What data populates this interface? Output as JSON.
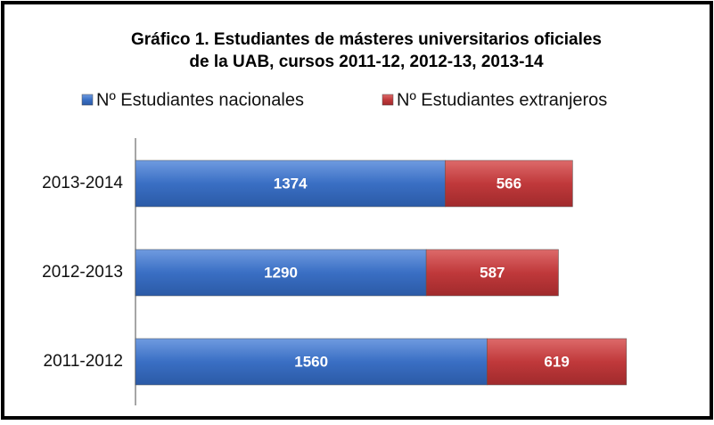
{
  "chart_data": {
    "type": "stacked-bar-horizontal",
    "title": [
      "Gráfico 1. Estudiantes de másteres universitarios oficiales",
      "de la UAB, cursos 2011-12, 2012-13, 2013-14"
    ],
    "categories": [
      "2013-2014",
      "2012-2013",
      "2011-2012"
    ],
    "series": [
      {
        "name": "Nº Estudiantes nacionales",
        "color": "#3a6fc4",
        "values": [
          1374,
          1290,
          1560
        ]
      },
      {
        "name": "Nº Estudiantes extranjeros",
        "color": "#c0393b",
        "values": [
          566,
          587,
          619
        ]
      }
    ],
    "xlim": [
      0,
      2500
    ],
    "legend": "top"
  }
}
